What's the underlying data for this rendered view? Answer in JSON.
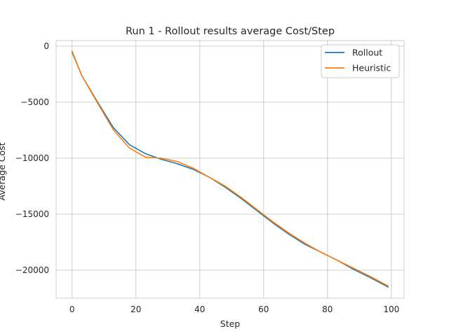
{
  "chart_data": {
    "type": "line",
    "title": "Run 1 - Rollout results average Cost/Step",
    "xlabel": "Step",
    "ylabel": "Average Cost",
    "xlim": [
      -5,
      104
    ],
    "ylim": [
      -22500,
      500
    ],
    "xticks": [
      0,
      20,
      40,
      60,
      80,
      100
    ],
    "yticks": [
      0,
      -5000,
      -10000,
      -15000,
      -20000
    ],
    "xtick_labels": [
      "0",
      "20",
      "40",
      "60",
      "80",
      "100"
    ],
    "ytick_labels": [
      "0",
      "−5000",
      "−10000",
      "−15000",
      "−20000"
    ],
    "grid": true,
    "legend_position": "top-right",
    "series": [
      {
        "name": "Rollout",
        "color": "#1f77b4",
        "x": [
          0,
          3,
          8,
          13,
          18,
          23,
          28,
          33,
          38,
          43,
          48,
          53,
          58,
          63,
          68,
          73,
          78,
          83,
          88,
          93,
          99
        ],
        "y": [
          -550,
          -2600,
          -5000,
          -7300,
          -8800,
          -9600,
          -10100,
          -10500,
          -11000,
          -11700,
          -12600,
          -13600,
          -14700,
          -15800,
          -16800,
          -17700,
          -18400,
          -19100,
          -19900,
          -20600,
          -21500
        ]
      },
      {
        "name": "Heuristic",
        "color": "#ff7f0e",
        "x": [
          0,
          3,
          8,
          13,
          18,
          23,
          28,
          33,
          38,
          43,
          48,
          53,
          58,
          63,
          68,
          73,
          78,
          83,
          88,
          93,
          99
        ],
        "y": [
          -450,
          -2600,
          -5100,
          -7500,
          -9100,
          -9900,
          -10000,
          -10300,
          -10900,
          -11700,
          -12500,
          -13500,
          -14600,
          -15700,
          -16700,
          -17600,
          -18400,
          -19100,
          -19800,
          -20500,
          -21400
        ]
      }
    ]
  }
}
